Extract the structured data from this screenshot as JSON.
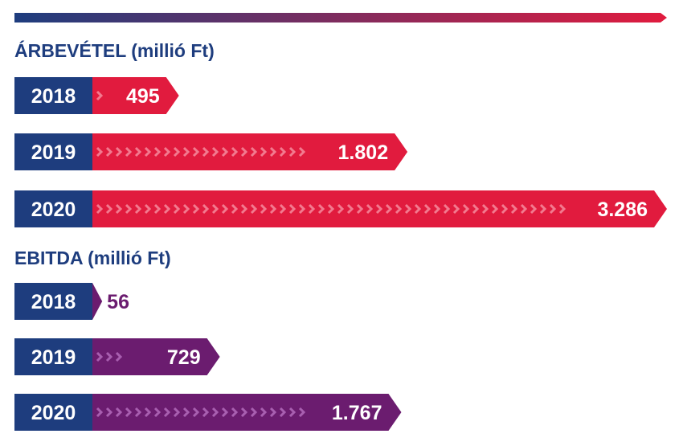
{
  "colors": {
    "navy": "#1e3d7e",
    "revenue": "#e11b3e",
    "ebitda": "#6b1c6f",
    "chevron_revenue": "#f27a8f",
    "chevron_ebitda": "#a85fb0",
    "topbar_start": "#1e3d7e",
    "topbar_end": "#e11b3e"
  },
  "chart_data": [
    {
      "type": "bar",
      "orientation": "horizontal",
      "title": "ÁRBEVÉTEL (millió Ft)",
      "categories": [
        "2018",
        "2019",
        "2020"
      ],
      "values": [
        495,
        1802,
        3286
      ],
      "value_labels": [
        "495",
        "1.802",
        "3.286"
      ],
      "color": "#e11b3e"
    },
    {
      "type": "bar",
      "orientation": "horizontal",
      "title": "EBITDA (millió Ft)",
      "categories": [
        "2018",
        "2019",
        "2020"
      ],
      "values": [
        56,
        729,
        1767
      ],
      "value_labels": [
        "56",
        "729",
        "1.767"
      ],
      "color": "#6b1c6f"
    }
  ]
}
